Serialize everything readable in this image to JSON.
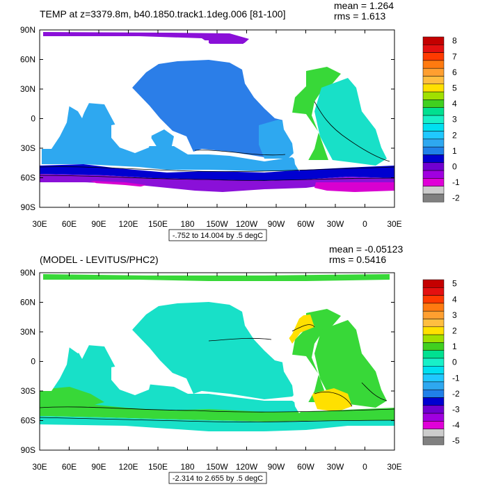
{
  "colors": {
    "background": "#ffffff",
    "land": "#ffffff",
    "contour_line": "#000000",
    "frame": "#000000"
  },
  "chart_data": [
    {
      "type": "heatmap",
      "title": "TEMP at z=3379.8m, b40.1850.track1.1deg.006 [81-100]",
      "stats": {
        "mean_label": "mean = 1.264",
        "rms_label": "rms = 1.613"
      },
      "contour_info": "-.752 to 14.004 by .5 degC",
      "x_ticks": [
        "30E",
        "60E",
        "90E",
        "120E",
        "150E",
        "180",
        "150W",
        "120W",
        "90W",
        "60W",
        "30W",
        "0",
        "30E"
      ],
      "y_ticks": [
        "90N",
        "60N",
        "30N",
        "0",
        "30S",
        "60S",
        "90S"
      ],
      "xlim": [
        30,
        390
      ],
      "ylim": [
        -90,
        90
      ],
      "colorbar": {
        "labels": [
          "8",
          "7",
          "6",
          "5",
          "4",
          "3",
          "2",
          "1",
          "0",
          "-1",
          "-2"
        ],
        "colors": [
          "#c40000",
          "#e41010",
          "#ff3a00",
          "#ff7a10",
          "#ff9f30",
          "#ffbe40",
          "#ffe000",
          "#a0e000",
          "#40d020",
          "#00e090",
          "#18f0c8",
          "#00e0f0",
          "#20c8ff",
          "#2ea8f0",
          "#2080e8",
          "#0000d0",
          "#7000d0",
          "#a000e0",
          "#e000d8",
          "#cccccc",
          "#808080"
        ]
      }
    },
    {
      "type": "heatmap",
      "title": "(MODEL - LEVITUS/PHC2)",
      "stats": {
        "mean_label": "mean = -0.05123",
        "rms_label": "rms = 0.5416"
      },
      "contour_info": "-2.314 to 2.655 by .5 degC",
      "x_ticks": [
        "30E",
        "60E",
        "90E",
        "120E",
        "150E",
        "180",
        "150W",
        "120W",
        "90W",
        "60W",
        "30W",
        "0",
        "30E"
      ],
      "y_ticks": [
        "90N",
        "60N",
        "30N",
        "0",
        "30S",
        "60S",
        "90S"
      ],
      "xlim": [
        30,
        390
      ],
      "ylim": [
        -90,
        90
      ],
      "colorbar": {
        "labels": [
          "5",
          "4",
          "3",
          "2",
          "1",
          "0",
          "-1",
          "-2",
          "-3",
          "-4",
          "-5"
        ],
        "colors": [
          "#c40000",
          "#e41010",
          "#ff3a00",
          "#ff7a10",
          "#ff9f30",
          "#ffbe40",
          "#ffe000",
          "#a0e000",
          "#40d020",
          "#00e090",
          "#18f0c8",
          "#00e0f0",
          "#20c8ff",
          "#2ea8f0",
          "#2080e8",
          "#0000d0",
          "#7000d0",
          "#a000e0",
          "#e000d8",
          "#cccccc",
          "#808080"
        ]
      }
    }
  ]
}
